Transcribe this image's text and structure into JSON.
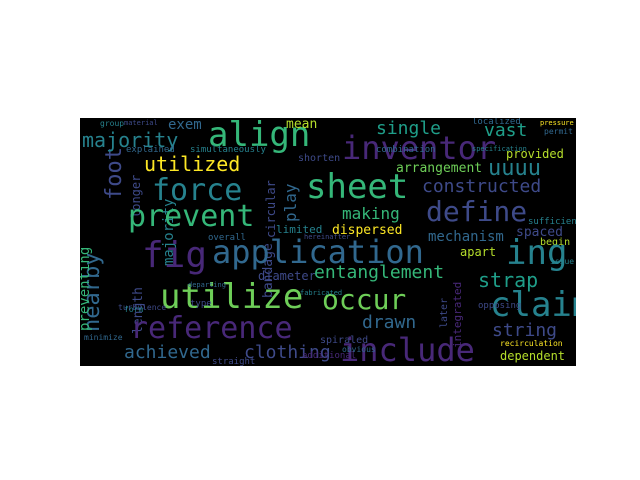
{
  "words": {
    "align": "align",
    "inventor": "inventor",
    "majority": "majority",
    "exem": "exem",
    "mean": "mean",
    "single": "single",
    "vast": "vast",
    "utilized": "utilized",
    "uuuu": "uuuu",
    "force": "force",
    "sheet": "sheet",
    "constructed": "constructed",
    "provided": "provided",
    "prevent": "prevent",
    "define": "define",
    "making": "making",
    "mechanism": "mechanism",
    "spaced": "spaced",
    "begin": "begin",
    "fig": "fig",
    "application": "application",
    "ing": "ing",
    "apart": "apart",
    "entanglement": "entanglement",
    "strap": "strap",
    "utilize": "utilize",
    "occur": "occur",
    "claim": "claim",
    "reference": "reference",
    "drawn": "drawn",
    "string": "string",
    "include": "include",
    "achieved": "achieved",
    "clothing": "clothing",
    "dependent": "dependent",
    "limited": "limited",
    "dispersed": "dispersed",
    "diameter": "diameter",
    "arrangement": "arrangement",
    "combination": "combination",
    "shorten": "shorten",
    "explained": "explained",
    "simultaneously": "simultaneously",
    "overall": "overall",
    "straight": "straight",
    "minimize": "minimize",
    "additional": "additional",
    "spiraled": "spiraled",
    "obvious": "obvious",
    "integrated": "integrated",
    "localized": "localized",
    "specification": "specification",
    "permit": "permit",
    "sufficiently": "sufficiently",
    "issue": "issue",
    "opposing": "opposing",
    "recirculation": "recirculation",
    "group": "group",
    "material": "material",
    "type": "type",
    "later": "later",
    "foot": "foot",
    "nearby": "nearby",
    "preventing": "preventing",
    "length": "length",
    "longer": "longer",
    "play": "play",
    "circular": "circular",
    "bandage": "bandage",
    "turbulence": "turbulence",
    "form": "form",
    "pressure": "pressure",
    "hereinafter": "hereinafter",
    "departing": "departing",
    "fabricated": "fabricated"
  },
  "colors": {
    "background": "#000000",
    "palette": [
      "#440154",
      "#482878",
      "#3e4a89",
      "#31688e",
      "#26828e",
      "#1f9e89",
      "#35b779",
      "#6ece58",
      "#b5de2b",
      "#fde725"
    ]
  }
}
